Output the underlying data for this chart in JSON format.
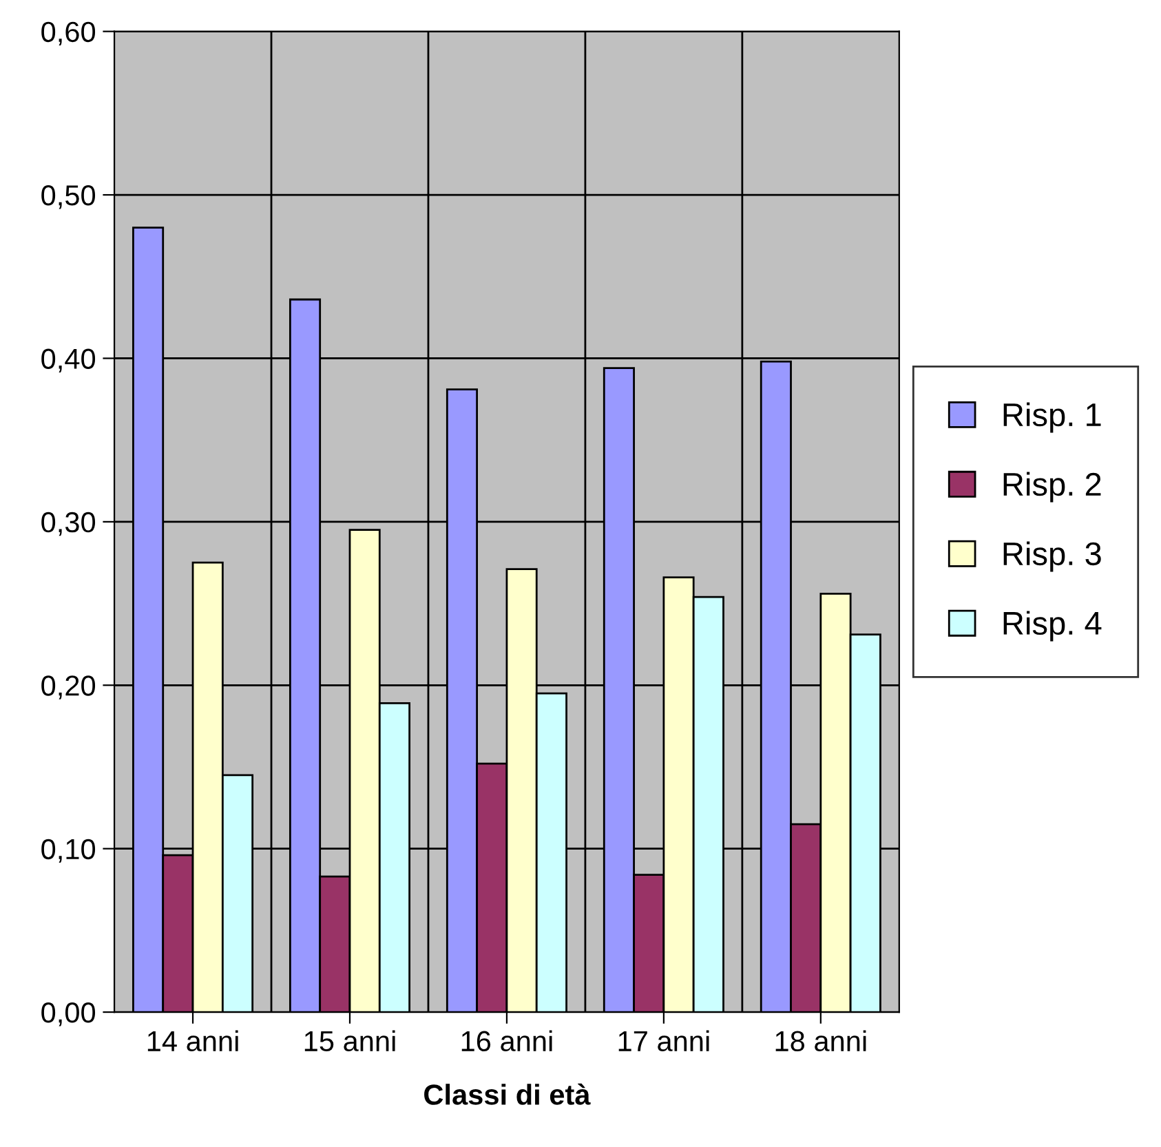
{
  "chart_data": {
    "type": "bar",
    "xlabel": "Classi di età",
    "categories": [
      "14 anni",
      "15 anni",
      "16 anni",
      "17 anni",
      "18 anni"
    ],
    "series": [
      {
        "name": "Risp. 1",
        "color": "#9999ff",
        "values": [
          0.48,
          0.436,
          0.381,
          0.394,
          0.398
        ]
      },
      {
        "name": "Risp. 2",
        "color": "#993366",
        "values": [
          0.096,
          0.083,
          0.152,
          0.084,
          0.115
        ]
      },
      {
        "name": "Risp. 3",
        "color": "#ffffcc",
        "values": [
          0.275,
          0.295,
          0.271,
          0.266,
          0.256
        ]
      },
      {
        "name": "Risp. 4",
        "color": "#ccffff",
        "values": [
          0.145,
          0.189,
          0.195,
          0.254,
          0.231
        ]
      }
    ],
    "ylim": [
      0,
      0.6
    ],
    "yticks": [
      {
        "value": 0,
        "label": "0,00"
      },
      {
        "value": 0.1,
        "label": "0,10"
      },
      {
        "value": 0.2,
        "label": "0,20"
      },
      {
        "value": 0.3,
        "label": "0,30"
      },
      {
        "value": 0.4,
        "label": "0,40"
      },
      {
        "value": 0.5,
        "label": "0,50"
      },
      {
        "value": 0.6,
        "label": "0,60"
      }
    ],
    "grid": true,
    "legend": "right"
  }
}
